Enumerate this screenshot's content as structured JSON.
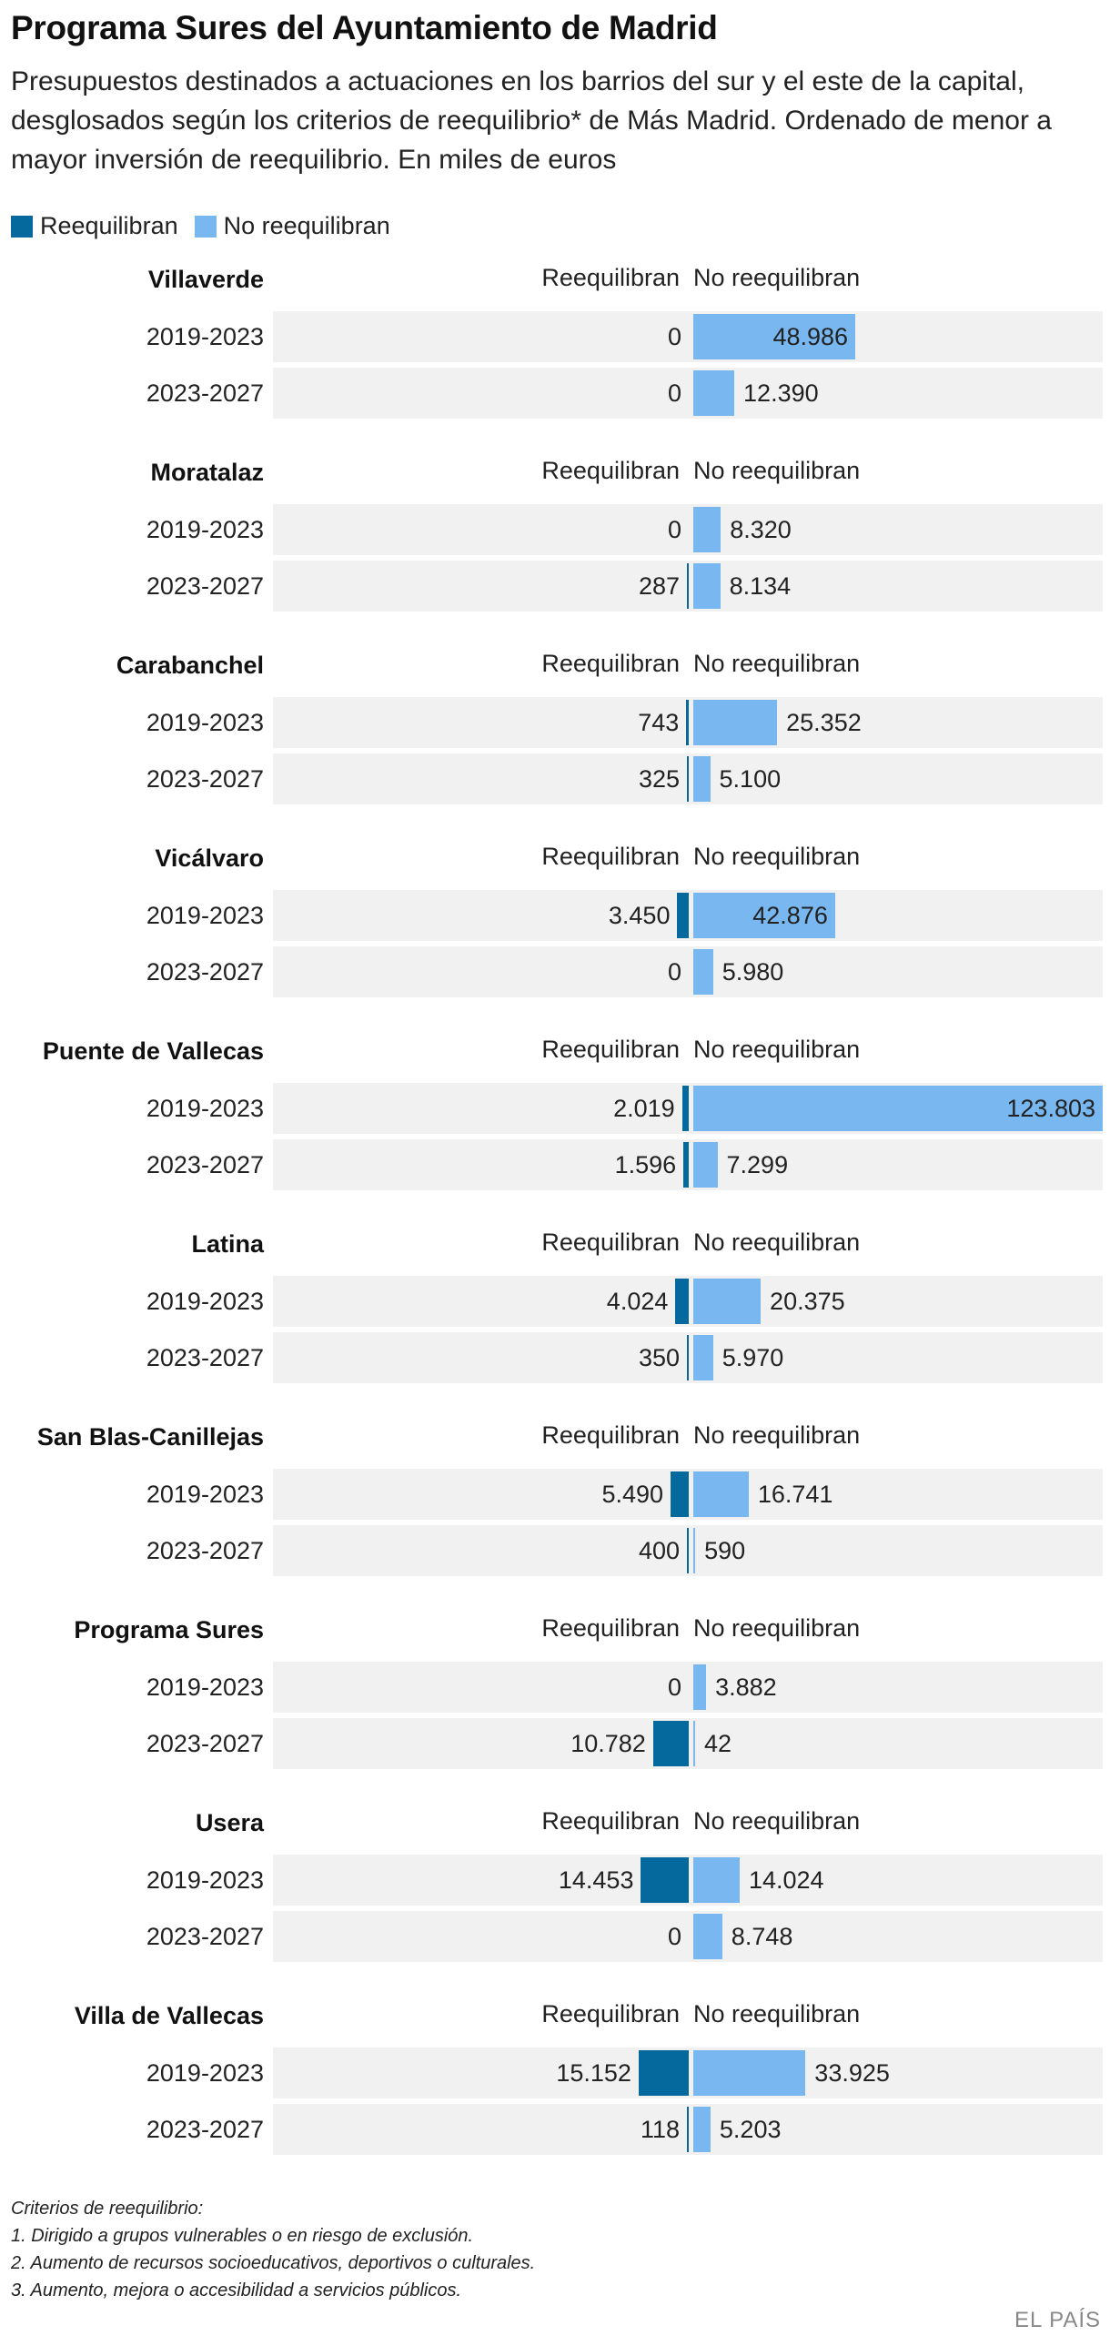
{
  "title": "Programa Sures del Ayuntamiento de Madrid",
  "subtitle": "Presupuestos destinados a actuaciones en los barrios del sur y el este de la capital, desglosados según los criterios de reequilibrio* de Más Madrid. Ordenado de menor a mayor inversión de reequilibrio. En miles de euros",
  "legend": {
    "reeq": "Reequilibran",
    "noreeq": "No reequilibran"
  },
  "colors": {
    "reeq": "#05699e",
    "noreeq": "#78b7ef",
    "row_bg": "#f1f1f1"
  },
  "chart_data": {
    "type": "bar",
    "orientation": "horizontal-diverging",
    "unit": "miles de euros",
    "series_names": [
      "Reequilibran",
      "No reequilibran"
    ],
    "column_headers": [
      "Reequilibran",
      "No reequilibran"
    ],
    "max_value": 123803,
    "groups": [
      {
        "name": "Villaverde",
        "rows": [
          {
            "period": "2019-2023",
            "reeq": 0,
            "reeq_label": "0",
            "noreeq": 48986,
            "noreeq_label": "48.986"
          },
          {
            "period": "2023-2027",
            "reeq": 0,
            "reeq_label": "0",
            "noreeq": 12390,
            "noreeq_label": "12.390"
          }
        ]
      },
      {
        "name": "Moratalaz",
        "rows": [
          {
            "period": "2019-2023",
            "reeq": 0,
            "reeq_label": "0",
            "noreeq": 8320,
            "noreeq_label": "8.320"
          },
          {
            "period": "2023-2027",
            "reeq": 287,
            "reeq_label": "287",
            "noreeq": 8134,
            "noreeq_label": "8.134"
          }
        ]
      },
      {
        "name": "Carabanchel",
        "rows": [
          {
            "period": "2019-2023",
            "reeq": 743,
            "reeq_label": "743",
            "noreeq": 25352,
            "noreeq_label": "25.352"
          },
          {
            "period": "2023-2027",
            "reeq": 325,
            "reeq_label": "325",
            "noreeq": 5100,
            "noreeq_label": "5.100"
          }
        ]
      },
      {
        "name": "Vicálvaro",
        "rows": [
          {
            "period": "2019-2023",
            "reeq": 3450,
            "reeq_label": "3.450",
            "noreeq": 42876,
            "noreeq_label": "42.876"
          },
          {
            "period": "2023-2027",
            "reeq": 0,
            "reeq_label": "0",
            "noreeq": 5980,
            "noreeq_label": "5.980"
          }
        ]
      },
      {
        "name": "Puente de Vallecas",
        "rows": [
          {
            "period": "2019-2023",
            "reeq": 2019,
            "reeq_label": "2.019",
            "noreeq": 123803,
            "noreeq_label": "123.803"
          },
          {
            "period": "2023-2027",
            "reeq": 1596,
            "reeq_label": "1.596",
            "noreeq": 7299,
            "noreeq_label": "7.299"
          }
        ]
      },
      {
        "name": "Latina",
        "rows": [
          {
            "period": "2019-2023",
            "reeq": 4024,
            "reeq_label": "4.024",
            "noreeq": 20375,
            "noreeq_label": "20.375"
          },
          {
            "period": "2023-2027",
            "reeq": 350,
            "reeq_label": "350",
            "noreeq": 5970,
            "noreeq_label": "5.970"
          }
        ]
      },
      {
        "name": "San Blas-Canillejas",
        "rows": [
          {
            "period": "2019-2023",
            "reeq": 5490,
            "reeq_label": "5.490",
            "noreeq": 16741,
            "noreeq_label": "16.741"
          },
          {
            "period": "2023-2027",
            "reeq": 400,
            "reeq_label": "400",
            "noreeq": 590,
            "noreeq_label": "590"
          }
        ]
      },
      {
        "name": "Programa Sures",
        "rows": [
          {
            "period": "2019-2023",
            "reeq": 0,
            "reeq_label": "0",
            "noreeq": 3882,
            "noreeq_label": "3.882"
          },
          {
            "period": "2023-2027",
            "reeq": 10782,
            "reeq_label": "10.782",
            "noreeq": 42,
            "noreeq_label": "42"
          }
        ]
      },
      {
        "name": "Usera",
        "rows": [
          {
            "period": "2019-2023",
            "reeq": 14453,
            "reeq_label": "14.453",
            "noreeq": 14024,
            "noreeq_label": "14.024"
          },
          {
            "period": "2023-2027",
            "reeq": 0,
            "reeq_label": "0",
            "noreeq": 8748,
            "noreeq_label": "8.748"
          }
        ]
      },
      {
        "name": "Villa de Vallecas",
        "rows": [
          {
            "period": "2019-2023",
            "reeq": 15152,
            "reeq_label": "15.152",
            "noreeq": 33925,
            "noreeq_label": "33.925"
          },
          {
            "period": "2023-2027",
            "reeq": 118,
            "reeq_label": "118",
            "noreeq": 5203,
            "noreeq_label": "5.203"
          }
        ]
      }
    ]
  },
  "notes": {
    "heading": "Criterios de reequilibrio:",
    "items": [
      "1. Dirigido a grupos vulnerables o en riesgo de exclusión.",
      "2. Aumento de recursos socioeducativos, deportivos o culturales.",
      "3. Aumento, mejora o accesibilidad a servicios públicos."
    ]
  },
  "credit": "EL PAÍS"
}
